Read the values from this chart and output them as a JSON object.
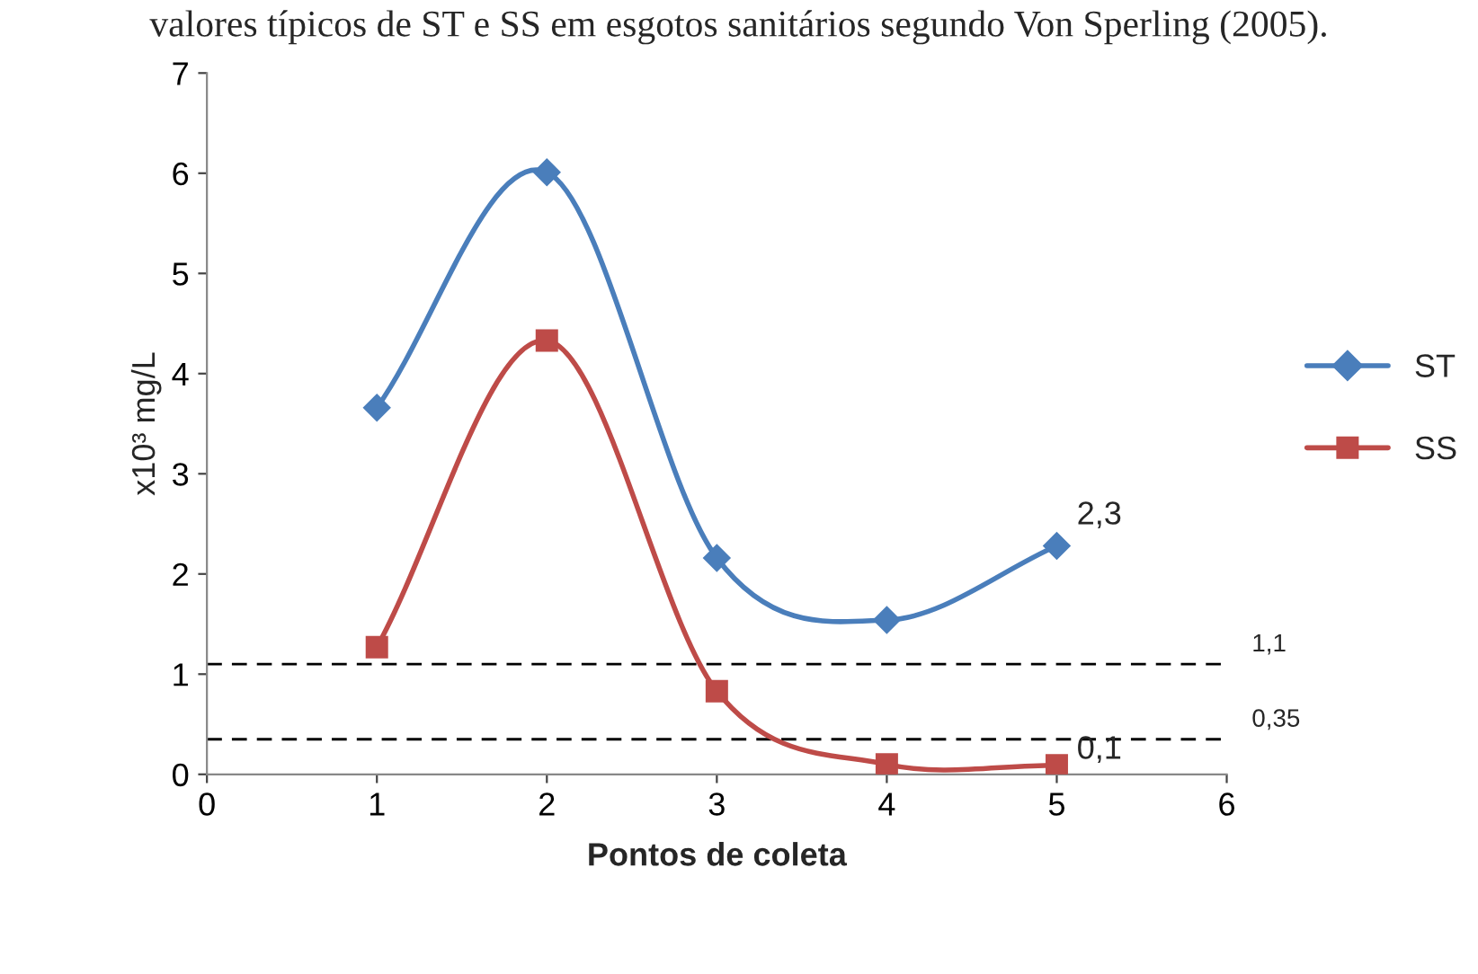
{
  "chart_data": {
    "type": "line",
    "title": "valores típicos de ST e SS em esgotos sanitários segundo Von Sperling (2005).",
    "xlabel": "Pontos de coleta",
    "ylabel": "x10³ mg/L",
    "x": [
      1,
      2,
      3,
      4,
      5
    ],
    "series": [
      {
        "name": "ST",
        "color": "#4a7ebb",
        "marker": "diamond",
        "values": [
          3.66,
          6.01,
          2.16,
          1.54,
          2.28
        ],
        "value_labels": [
          null,
          null,
          null,
          null,
          "2,3"
        ]
      },
      {
        "name": "SS",
        "color": "#be4b48",
        "marker": "square",
        "values": [
          1.27,
          4.33,
          0.83,
          0.1,
          0.09
        ],
        "value_labels": [
          null,
          null,
          null,
          null,
          "0,1"
        ]
      }
    ],
    "ref_lines": [
      {
        "axis": "y",
        "value": 1.1,
        "label": "1,1",
        "color": "#000000",
        "line_style": "dashed"
      },
      {
        "axis": "y",
        "value": 0.35,
        "label": "0,35",
        "color": "#000000",
        "line_style": "dashed"
      }
    ],
    "xlim": [
      0,
      6
    ],
    "xticks": [
      0,
      1,
      2,
      3,
      4,
      5,
      6
    ],
    "ylim": [
      0,
      7
    ],
    "yticks": [
      0,
      1,
      2,
      3,
      4,
      5,
      6,
      7
    ],
    "legend": "right",
    "grid": false
  }
}
